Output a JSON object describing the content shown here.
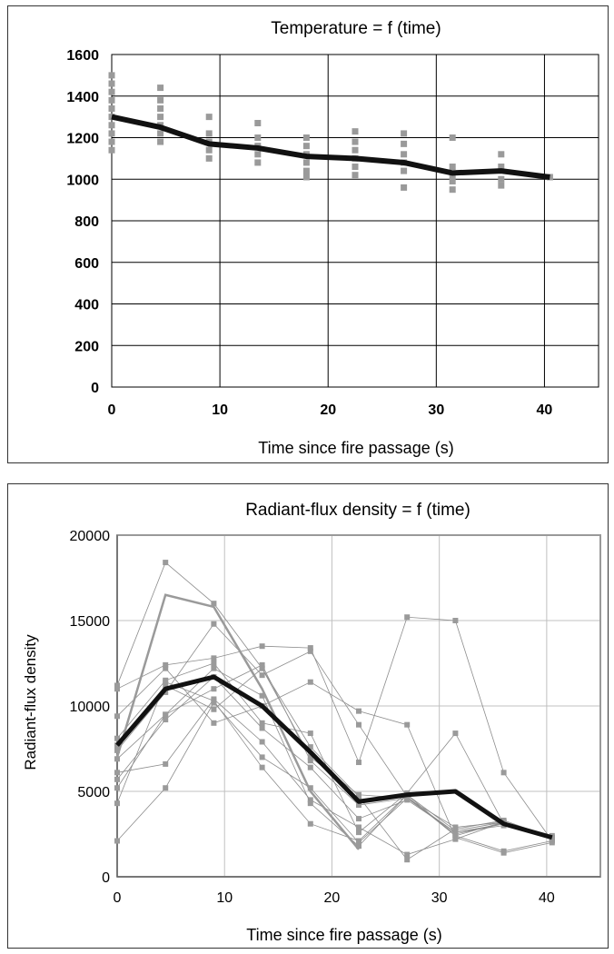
{
  "charts": [
    {
      "type": "line",
      "title": "Temperature = f (time)",
      "xlabel": "Time since fire passage (s)",
      "ylabel": "",
      "xlim": [
        0,
        45
      ],
      "ylim": [
        0,
        1600
      ],
      "xticks": [
        0,
        10,
        20,
        30,
        40
      ],
      "yticks": [
        0,
        200,
        400,
        600,
        800,
        1000,
        1200,
        1400,
        1600
      ],
      "grid": true,
      "legend": "none",
      "mean_series": {
        "x": [
          0,
          4.5,
          9,
          13.5,
          18,
          22.5,
          27,
          31.5,
          36,
          40.5
        ],
        "y": [
          1300,
          1250,
          1170,
          1150,
          1110,
          1100,
          1080,
          1030,
          1040,
          1010
        ]
      },
      "scatter_points": [
        [
          0,
          1500
        ],
        [
          0,
          1460
        ],
        [
          0,
          1420
        ],
        [
          0,
          1380
        ],
        [
          0,
          1340
        ],
        [
          0,
          1300
        ],
        [
          0,
          1260
        ],
        [
          0,
          1220
        ],
        [
          0,
          1180
        ],
        [
          0,
          1140
        ],
        [
          4.5,
          1440
        ],
        [
          4.5,
          1380
        ],
        [
          4.5,
          1340
        ],
        [
          4.5,
          1300
        ],
        [
          4.5,
          1260
        ],
        [
          4.5,
          1220
        ],
        [
          4.5,
          1180
        ],
        [
          9,
          1300
        ],
        [
          9,
          1220
        ],
        [
          9,
          1180
        ],
        [
          9,
          1140
        ],
        [
          9,
          1100
        ],
        [
          13.5,
          1270
        ],
        [
          13.5,
          1200
        ],
        [
          13.5,
          1160
        ],
        [
          13.5,
          1120
        ],
        [
          13.5,
          1080
        ],
        [
          18,
          1200
        ],
        [
          18,
          1160
        ],
        [
          18,
          1120
        ],
        [
          18,
          1080
        ],
        [
          18,
          1040
        ],
        [
          18,
          1010
        ],
        [
          22.5,
          1230
        ],
        [
          22.5,
          1180
        ],
        [
          22.5,
          1140
        ],
        [
          22.5,
          1100
        ],
        [
          22.5,
          1060
        ],
        [
          22.5,
          1020
        ],
        [
          27,
          1220
        ],
        [
          27,
          1170
        ],
        [
          27,
          1120
        ],
        [
          27,
          1080
        ],
        [
          27,
          1040
        ],
        [
          27,
          960
        ],
        [
          31.5,
          1200
        ],
        [
          31.5,
          1060
        ],
        [
          31.5,
          1020
        ],
        [
          31.5,
          990
        ],
        [
          31.5,
          950
        ],
        [
          36,
          1120
        ],
        [
          36,
          1060
        ],
        [
          36,
          1000
        ],
        [
          36,
          970
        ],
        [
          40.5,
          1010
        ]
      ]
    },
    {
      "type": "line",
      "title": "Radiant-flux density = f (time)",
      "xlabel": "Time since fire passage (s)",
      "ylabel": "Radiant-flux density",
      "xlim": [
        0,
        45
      ],
      "ylim": [
        0,
        20000
      ],
      "xticks": [
        0,
        10,
        20,
        30,
        40
      ],
      "yticks": [
        0,
        5000,
        10000,
        15000,
        20000
      ],
      "grid": true,
      "legend": "none",
      "mean_series": {
        "x": [
          0,
          4.5,
          9,
          13.5,
          18,
          22.5,
          27,
          31.5,
          36,
          40.5
        ],
        "y": [
          7700,
          11000,
          11700,
          10000,
          7300,
          4400,
          4800,
          5000,
          3100,
          2300
        ]
      },
      "highlight_series": [
        {
          "x": [
            0,
            4.5,
            9,
            13.5,
            18,
            22.5
          ],
          "y": [
            7000,
            16500,
            15800,
            11000,
            5000,
            1600
          ]
        }
      ],
      "thin_series": [
        {
          "x": [
            0,
            4.5,
            9,
            13.5,
            18,
            22.5,
            27,
            31.5,
            36,
            40.5
          ],
          "y": [
            11200,
            18400,
            16000,
            12200,
            7600,
            4700,
            1000,
            2800,
            3300,
            2300
          ]
        },
        {
          "x": [
            0,
            4.5,
            9,
            13.5,
            18,
            22.5,
            27,
            31.5,
            36,
            40.5
          ],
          "y": [
            11000,
            12400,
            12800,
            13500,
            13400,
            6700,
            15200,
            15000,
            6100,
            2100
          ]
        },
        {
          "x": [
            0,
            4.5,
            9,
            13.5,
            18,
            22.5,
            27,
            31.5,
            36,
            40.5
          ],
          "y": [
            9400,
            12200,
            9000,
            10000,
            11400,
            9700,
            8900,
            2300,
            1400,
            2000
          ]
        },
        {
          "x": [
            0,
            4.5,
            9,
            13.5,
            18,
            22.5,
            27,
            31.5,
            36,
            40.5
          ],
          "y": [
            8100,
            11500,
            12500,
            9000,
            8400,
            2600,
            4900,
            8400,
            3100,
            2400
          ]
        },
        {
          "x": [
            0,
            4.5,
            9,
            13.5,
            18,
            22.5,
            27,
            31.5,
            36,
            40.5
          ],
          "y": [
            7400,
            10800,
            14800,
            11800,
            13200,
            8900,
            4700,
            2400,
            1500,
            2100
          ]
        },
        {
          "x": [
            0,
            4.5,
            9,
            13.5,
            18,
            22.5,
            27,
            31.5,
            36,
            40.5
          ],
          "y": [
            6900,
            9500,
            11000,
            12400,
            6800,
            4200,
            4600,
            2600,
            3000,
            2300
          ]
        },
        {
          "x": [
            0,
            4.5,
            9,
            13.5,
            18,
            22.5,
            27,
            31.5,
            36,
            40.5
          ],
          "y": [
            6100,
            6600,
            10400,
            7900,
            4500,
            2900,
            1300,
            2200,
            3200,
            2200
          ]
        },
        {
          "x": [
            0,
            4.5,
            9,
            13.5,
            18,
            22.5,
            27,
            31.5,
            36,
            40.5
          ],
          "y": [
            5700,
            9200,
            11700,
            8700,
            6400,
            3400,
            4500,
            2600,
            3100,
            2200
          ]
        },
        {
          "x": [
            0,
            4.5,
            9,
            13.5,
            18,
            22.5,
            27,
            31.5,
            36,
            40.5
          ],
          "y": [
            5200,
            9500,
            12200,
            10600,
            4300,
            1800,
            4800,
            2400,
            3200,
            2300
          ]
        },
        {
          "x": [
            0,
            4.5,
            9,
            13.5,
            18,
            22.5,
            27,
            31.5,
            36,
            40.5
          ],
          "y": [
            4300,
            11400,
            10300,
            6400,
            3100,
            2100,
            4800,
            2700,
            3200,
            2300
          ]
        },
        {
          "x": [
            0,
            4.5,
            9,
            13.5,
            18,
            22.5,
            27,
            31.5,
            36,
            40.5
          ],
          "y": [
            2100,
            5200,
            10200,
            7000,
            5200,
            2000,
            4600,
            2500,
            3100,
            2200
          ]
        },
        {
          "x": [
            0,
            4.5,
            9,
            13.5,
            18,
            22.5,
            27,
            31.5,
            36,
            40.5
          ],
          "y": [
            7700,
            11200,
            9800,
            12200,
            7000,
            4800,
            4600,
            2900,
            3200,
            2300
          ]
        }
      ]
    }
  ],
  "colors": {
    "mean": "#111111",
    "marker": "#9a9a9a",
    "highlight": "#9a9a9a",
    "thin": "#8c8c8c",
    "grid1": "#000000",
    "grid2": "#c0c0c0",
    "plot_border2": "#999999"
  }
}
